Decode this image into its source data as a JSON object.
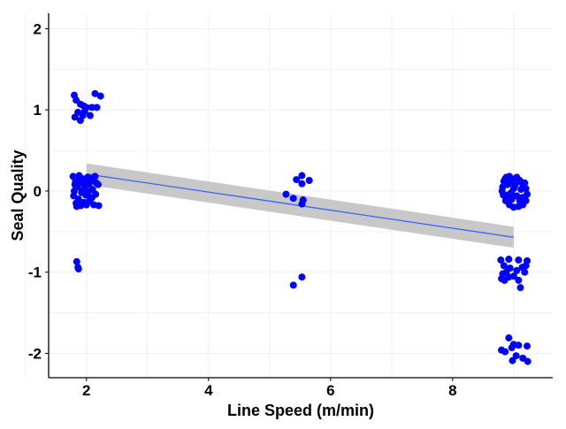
{
  "chart_data": {
    "type": "scatter",
    "title": "",
    "xlabel": "Line Speed (m/min)",
    "ylabel": "Seal Quality",
    "xlim": [
      1.38,
      9.64
    ],
    "ylim": [
      -2.3,
      2.19
    ],
    "xticks": [
      2,
      4,
      6,
      8
    ],
    "yticks": [
      -2,
      -1,
      0,
      1,
      2
    ],
    "grid": true,
    "legend": "none",
    "point_color": "#0000FF",
    "fit_line_color": "#3366FF",
    "ci_band_color": "#C8C8C8",
    "fit": {
      "type": "linear",
      "x": [
        2,
        9
      ],
      "y": [
        0.21,
        -0.57
      ],
      "ci_halfwidth": [
        0.13,
        0.13
      ]
    },
    "points": [
      [
        1.8,
        1.18
      ],
      [
        1.83,
        1.12
      ],
      [
        2.14,
        1.2
      ],
      [
        2.23,
        1.17
      ],
      [
        1.9,
        1.07
      ],
      [
        2.0,
        1.03
      ],
      [
        1.86,
        0.97
      ],
      [
        1.97,
        0.98
      ],
      [
        2.09,
        1.03
      ],
      [
        2.17,
        1.03
      ],
      [
        1.81,
        0.91
      ],
      [
        1.9,
        0.87
      ],
      [
        1.94,
        0.93
      ],
      [
        2.06,
        0.93
      ],
      [
        1.95,
        1.05
      ],
      [
        1.78,
        0.18
      ],
      [
        1.82,
        0.12
      ],
      [
        1.85,
        0.05
      ],
      [
        1.8,
        0.0
      ],
      [
        1.79,
        -0.06
      ],
      [
        1.83,
        -0.15
      ],
      [
        1.88,
        0.19
      ],
      [
        1.9,
        0.1
      ],
      [
        1.92,
        -0.02
      ],
      [
        1.87,
        -0.1
      ],
      [
        1.91,
        -0.18
      ],
      [
        1.95,
        0.15
      ],
      [
        1.97,
        0.05
      ],
      [
        1.99,
        -0.05
      ],
      [
        1.96,
        -0.14
      ],
      [
        2.02,
        0.17
      ],
      [
        2.04,
        0.08
      ],
      [
        2.03,
        -0.01
      ],
      [
        2.05,
        -0.12
      ],
      [
        2.08,
        0.13
      ],
      [
        2.1,
        0.02
      ],
      [
        2.09,
        -0.08
      ],
      [
        2.12,
        -0.17
      ],
      [
        2.14,
        0.18
      ],
      [
        2.16,
        0.1
      ],
      [
        2.15,
        -0.04
      ],
      [
        2.19,
        0.08
      ],
      [
        2.2,
        -0.18
      ],
      [
        1.84,
        -0.19
      ],
      [
        1.93,
        0.0
      ],
      [
        2.0,
        -0.17
      ],
      [
        2.07,
        0.15
      ],
      [
        1.81,
        0.08
      ],
      [
        1.86,
        0.16
      ],
      [
        1.98,
        0.12
      ],
      [
        1.84,
        -0.87
      ],
      [
        1.86,
        -0.94
      ],
      [
        1.87,
        -0.96
      ],
      [
        5.27,
        -0.04
      ],
      [
        5.39,
        -0.09
      ],
      [
        5.44,
        0.14
      ],
      [
        5.53,
        0.19
      ],
      [
        5.53,
        0.09
      ],
      [
        5.65,
        0.13
      ],
      [
        5.55,
        -0.11
      ],
      [
        5.53,
        -0.16
      ],
      [
        5.39,
        -1.16
      ],
      [
        5.53,
        -1.06
      ],
      [
        8.82,
        0.05
      ],
      [
        8.84,
        0.12
      ],
      [
        8.88,
        0.17
      ],
      [
        8.93,
        0.18
      ],
      [
        8.98,
        0.15
      ],
      [
        9.05,
        0.17
      ],
      [
        9.1,
        0.13
      ],
      [
        9.15,
        0.08
      ],
      [
        9.2,
        0.03
      ],
      [
        9.22,
        -0.04
      ],
      [
        9.2,
        -0.12
      ],
      [
        9.15,
        -0.17
      ],
      [
        9.08,
        -0.19
      ],
      [
        9.0,
        -0.2
      ],
      [
        8.93,
        -0.17
      ],
      [
        8.87,
        -0.12
      ],
      [
        8.83,
        -0.05
      ],
      [
        8.81,
        0.0
      ],
      [
        8.9,
        0.08
      ],
      [
        8.95,
        0.1
      ],
      [
        9.02,
        0.07
      ],
      [
        9.12,
        0.02
      ],
      [
        9.05,
        -0.06
      ],
      [
        8.97,
        -0.1
      ],
      [
        8.9,
        -0.05
      ],
      [
        9.1,
        -0.12
      ],
      [
        9.18,
        0.1
      ],
      [
        8.86,
        0.15
      ],
      [
        9.0,
        0.03
      ],
      [
        9.14,
        -0.08
      ],
      [
        8.96,
        -0.02
      ],
      [
        9.08,
        0.12
      ],
      [
        8.79,
        -0.85
      ],
      [
        8.92,
        -0.84
      ],
      [
        9.08,
        -0.85
      ],
      [
        9.22,
        -0.86
      ],
      [
        8.84,
        -0.92
      ],
      [
        8.82,
        -1.02
      ],
      [
        8.88,
        -1.0
      ],
      [
        8.94,
        -0.95
      ],
      [
        8.85,
        -1.1
      ],
      [
        8.92,
        -1.06
      ],
      [
        9.05,
        -0.98
      ],
      [
        9.14,
        -0.94
      ],
      [
        9.2,
        -0.92
      ],
      [
        9.18,
        -1.0
      ],
      [
        9.0,
        -1.05
      ],
      [
        9.11,
        -1.19
      ],
      [
        9.08,
        -1.1
      ],
      [
        8.8,
        -1.08
      ],
      [
        8.92,
        -1.81
      ],
      [
        8.8,
        -1.96
      ],
      [
        8.86,
        -1.98
      ],
      [
        8.97,
        -1.93
      ],
      [
        9.0,
        -1.89
      ],
      [
        9.08,
        -1.9
      ],
      [
        9.22,
        -1.91
      ],
      [
        8.98,
        -2.09
      ],
      [
        9.04,
        -2.03
      ],
      [
        9.15,
        -2.06
      ],
      [
        9.23,
        -2.1
      ]
    ]
  }
}
